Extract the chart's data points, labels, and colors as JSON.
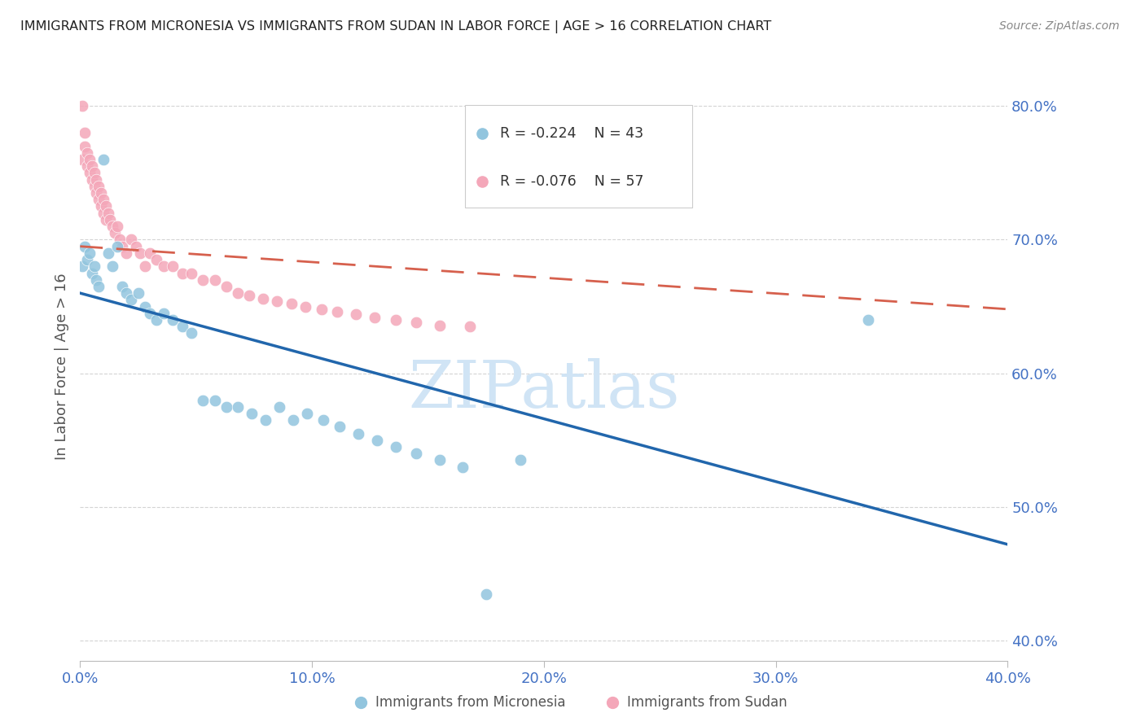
{
  "title": "IMMIGRANTS FROM MICRONESIA VS IMMIGRANTS FROM SUDAN IN LABOR FORCE | AGE > 16 CORRELATION CHART",
  "source": "Source: ZipAtlas.com",
  "ylabel": "In Labor Force | Age > 16",
  "xlim": [
    0.0,
    0.4
  ],
  "ylim": [
    0.385,
    0.825
  ],
  "yticks": [
    0.4,
    0.5,
    0.6,
    0.7,
    0.8
  ],
  "ytick_labels": [
    "40.0%",
    "50.0%",
    "60.0%",
    "70.0%",
    "80.0%"
  ],
  "xticks": [
    0.0,
    0.1,
    0.2,
    0.3,
    0.4
  ],
  "xtick_labels": [
    "0.0%",
    "10.0%",
    "20.0%",
    "30.0%",
    "40.0%"
  ],
  "micronesia_R": -0.224,
  "micronesia_N": 43,
  "sudan_R": -0.076,
  "sudan_N": 57,
  "micronesia_color": "#92c5de",
  "sudan_color": "#f4a7b9",
  "micronesia_line_color": "#2166ac",
  "sudan_line_color": "#d6604d",
  "watermark": "ZIPatlas",
  "watermark_color": "#d0e4f5",
  "background_color": "#ffffff",
  "grid_color": "#d0d0d0",
  "axis_color": "#4472c4",
  "micronesia_x": [
    0.001,
    0.002,
    0.003,
    0.004,
    0.005,
    0.006,
    0.007,
    0.008,
    0.01,
    0.012,
    0.014,
    0.016,
    0.018,
    0.02,
    0.022,
    0.025,
    0.028,
    0.03,
    0.033,
    0.036,
    0.04,
    0.044,
    0.048,
    0.053,
    0.058,
    0.063,
    0.068,
    0.074,
    0.08,
    0.086,
    0.092,
    0.098,
    0.105,
    0.112,
    0.12,
    0.128,
    0.136,
    0.145,
    0.155,
    0.165,
    0.175,
    0.19,
    0.34
  ],
  "micronesia_y": [
    0.68,
    0.695,
    0.685,
    0.69,
    0.675,
    0.68,
    0.67,
    0.665,
    0.76,
    0.69,
    0.68,
    0.695,
    0.665,
    0.66,
    0.655,
    0.66,
    0.65,
    0.645,
    0.64,
    0.645,
    0.64,
    0.635,
    0.63,
    0.58,
    0.58,
    0.575,
    0.575,
    0.57,
    0.565,
    0.575,
    0.565,
    0.57,
    0.565,
    0.56,
    0.555,
    0.55,
    0.545,
    0.54,
    0.535,
    0.53,
    0.435,
    0.535,
    0.64
  ],
  "sudan_x": [
    0.001,
    0.001,
    0.002,
    0.002,
    0.003,
    0.003,
    0.004,
    0.004,
    0.005,
    0.005,
    0.006,
    0.006,
    0.007,
    0.007,
    0.008,
    0.008,
    0.009,
    0.009,
    0.01,
    0.01,
    0.011,
    0.011,
    0.012,
    0.013,
    0.014,
    0.015,
    0.016,
    0.017,
    0.018,
    0.02,
    0.022,
    0.024,
    0.026,
    0.028,
    0.03,
    0.033,
    0.036,
    0.04,
    0.044,
    0.048,
    0.053,
    0.058,
    0.063,
    0.068,
    0.073,
    0.079,
    0.085,
    0.091,
    0.097,
    0.104,
    0.111,
    0.119,
    0.127,
    0.136,
    0.145,
    0.155,
    0.168
  ],
  "sudan_y": [
    0.76,
    0.8,
    0.78,
    0.77,
    0.765,
    0.755,
    0.76,
    0.75,
    0.755,
    0.745,
    0.75,
    0.74,
    0.745,
    0.735,
    0.74,
    0.73,
    0.735,
    0.725,
    0.73,
    0.72,
    0.725,
    0.715,
    0.72,
    0.715,
    0.71,
    0.705,
    0.71,
    0.7,
    0.695,
    0.69,
    0.7,
    0.695,
    0.69,
    0.68,
    0.69,
    0.685,
    0.68,
    0.68,
    0.675,
    0.675,
    0.67,
    0.67,
    0.665,
    0.66,
    0.658,
    0.656,
    0.654,
    0.652,
    0.65,
    0.648,
    0.646,
    0.644,
    0.642,
    0.64,
    0.638,
    0.636,
    0.635
  ],
  "mic_trend_x0": 0.0,
  "mic_trend_y0": 0.66,
  "mic_trend_x1": 0.4,
  "mic_trend_y1": 0.472,
  "sud_trend_x0": 0.0,
  "sud_trend_y0": 0.695,
  "sud_trend_x1": 0.4,
  "sud_trend_y1": 0.648
}
